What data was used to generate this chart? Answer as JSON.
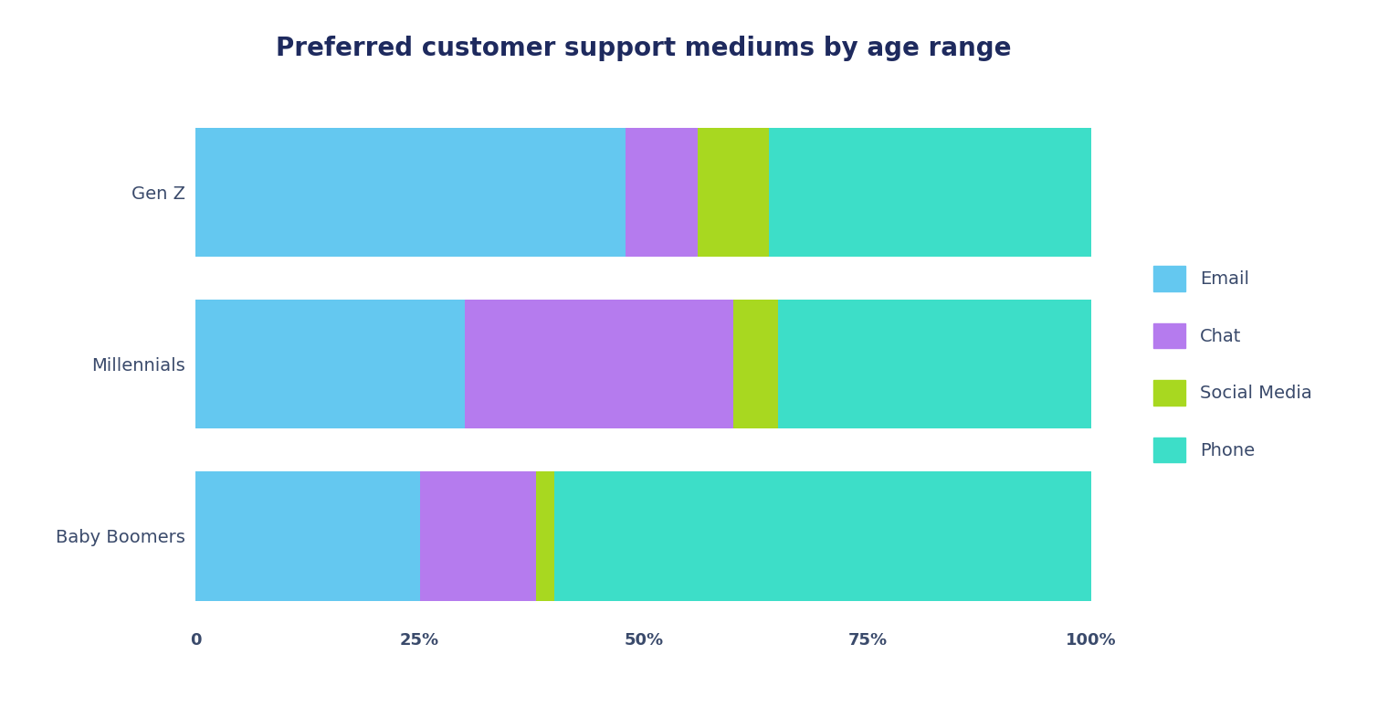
{
  "title": "Preferred customer support mediums by age range",
  "categories": [
    "Gen Z",
    "Millennials",
    "Baby Boomers"
  ],
  "segments": [
    "Email",
    "Chat",
    "Social Media",
    "Phone"
  ],
  "values": {
    "Gen Z": [
      48,
      8,
      8,
      36
    ],
    "Millennials": [
      30,
      30,
      5,
      35
    ],
    "Baby Boomers": [
      25,
      13,
      2,
      60
    ]
  },
  "colors": {
    "Email": "#64C8F0",
    "Chat": "#B57BEE",
    "Social Media": "#A8D820",
    "Phone": "#3DDEC8"
  },
  "xticks": [
    0,
    25,
    50,
    75,
    100
  ],
  "xtick_labels": [
    "0",
    "25%",
    "50%",
    "75%",
    "100%"
  ],
  "title_color": "#1E2A5E",
  "label_color": "#3A4A6B",
  "background_color": "#FFFFFF",
  "bar_height": 0.75,
  "title_fontsize": 20,
  "tick_fontsize": 13,
  "label_fontsize": 14,
  "legend_fontsize": 14
}
